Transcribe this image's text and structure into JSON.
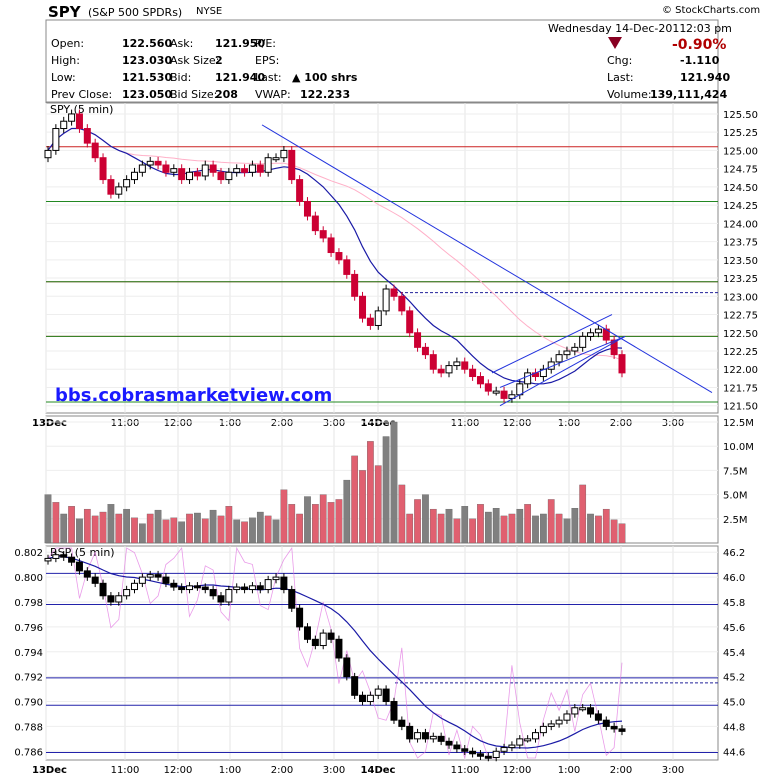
{
  "header": {
    "symbol": "SPY",
    "name": "(S&P 500 SPDRs)",
    "exchange": "NYSE",
    "copyright": "© StockCharts.com",
    "date": "Wednesday  14-Dec-2011",
    "time": "2:03 pm",
    "pct_change": "-0.90%",
    "stats_left": [
      {
        "label": "Open:",
        "value": "122.560"
      },
      {
        "label": "High:",
        "value": "123.030"
      },
      {
        "label": "Low:",
        "value": "121.530"
      },
      {
        "label": "Prev Close:",
        "value": "123.050"
      }
    ],
    "stats_mid": [
      {
        "label": "Ask:",
        "value": "121.950"
      },
      {
        "label": "Ask Size:",
        "value": "2"
      },
      {
        "label": "Bid:",
        "value": "121.940"
      },
      {
        "label": "Bid Size:",
        "value": "208"
      }
    ],
    "stats_mid2": [
      {
        "label": "P/E:",
        "value": ""
      },
      {
        "label": "EPS:",
        "value": ""
      },
      {
        "label": "Last:",
        "value": "100 shrs"
      },
      {
        "label": "VWAP:",
        "value": "122.233"
      }
    ],
    "stats_right": [
      {
        "label": "Chg:",
        "value": "-1.110"
      },
      {
        "label": "Last:",
        "value": "121.940"
      },
      {
        "label": "Volume:",
        "value": "139,111,424"
      }
    ]
  },
  "watermark": "bbs.cobrasmarketview.com",
  "colors": {
    "up": "#000000",
    "down": "#cc0033",
    "ma": "#1a1aa6",
    "ma_light": "#ffb0c8",
    "trend": "#2233dd",
    "hline_red": "#cc2222",
    "hline_green": "#228822",
    "vol_up": "#808080",
    "vol_down": "#e06070",
    "rsp_ma": "#9999cc",
    "rsp_pink": "#e070e0"
  },
  "chart_data": [
    {
      "type": "candlestick",
      "title": "SPY (5 min)",
      "x_labels": [
        "13Dec",
        "11:00",
        "12:00",
        "1:00",
        "2:00",
        "3:00",
        "14Dec",
        "11:00",
        "12:00",
        "1:00",
        "2:00",
        "3:00"
      ],
      "y_ticks": [
        121.5,
        121.75,
        122.0,
        122.25,
        122.5,
        122.75,
        123.0,
        123.25,
        123.5,
        123.75,
        124.0,
        124.25,
        124.5,
        124.75,
        125.0,
        125.25,
        125.5
      ],
      "ylim": [
        121.4,
        125.65
      ],
      "horizontal_levels_red": [
        125.05,
        123.2,
        122.45
      ],
      "horizontal_levels_green": [
        124.3,
        123.2,
        122.45,
        121.55
      ],
      "dashed_level": 123.05,
      "series": [
        {
          "name": "SPY",
          "close": [
            125.0,
            125.3,
            125.4,
            125.5,
            125.3,
            125.1,
            124.9,
            124.6,
            124.4,
            124.5,
            124.6,
            124.7,
            124.8,
            124.85,
            124.8,
            124.7,
            124.75,
            124.6,
            124.7,
            124.65,
            124.8,
            124.7,
            124.6,
            124.7,
            124.75,
            124.7,
            124.8,
            124.7,
            124.9,
            124.9,
            125.0,
            124.6,
            124.3,
            124.1,
            123.9,
            123.8,
            123.6,
            123.5,
            123.3,
            123.0,
            122.7,
            122.6,
            122.8,
            123.1,
            123.0,
            122.8,
            122.5,
            122.3,
            122.2,
            122.0,
            121.95,
            122.05,
            122.1,
            122.0,
            121.9,
            121.8,
            121.7,
            121.7,
            121.6,
            121.65,
            121.8,
            121.95,
            121.9,
            122.0,
            122.1,
            122.2,
            122.25,
            122.3,
            122.45,
            122.5,
            122.55,
            122.4,
            122.2,
            121.95
          ]
        }
      ]
    },
    {
      "type": "bar",
      "title": "Volume",
      "y_ticks": [
        "2.5M",
        "5.0M",
        "7.5M",
        "10.0M",
        "12.5M"
      ],
      "ylim": [
        0,
        12.5
      ],
      "values": [
        5.0,
        4.2,
        3.0,
        3.8,
        2.5,
        3.5,
        2.8,
        3.2,
        4.0,
        3.0,
        3.5,
        2.6,
        2.0,
        3.0,
        3.4,
        2.4,
        2.6,
        2.2,
        3.0,
        3.1,
        2.5,
        3.4,
        2.8,
        3.8,
        2.4,
        2.2,
        2.6,
        3.2,
        2.8,
        2.4,
        5.5,
        4.0,
        3.0,
        4.8,
        4.0,
        5.0,
        4.2,
        4.5,
        6.5,
        9.0,
        7.5,
        10.5,
        8.0,
        11.0,
        12.5,
        6.0,
        3.0,
        4.5,
        5.0,
        3.5,
        3.0,
        3.5,
        2.5,
        3.8,
        2.5,
        4.0,
        3.2,
        3.6,
        2.8,
        3.0,
        3.5,
        4.0,
        2.8,
        3.0,
        4.5,
        3.0,
        2.5,
        3.6,
        6.0,
        3.0,
        2.8,
        3.5,
        2.4,
        2.0
      ],
      "down": [
        false,
        true,
        false,
        true,
        false,
        true,
        true,
        true,
        false,
        true,
        false,
        true,
        false,
        true,
        false,
        true,
        true,
        false,
        true,
        false,
        true,
        false,
        true,
        true,
        false,
        true,
        false,
        false,
        true,
        false,
        true,
        true,
        true,
        false,
        true,
        true,
        true,
        true,
        false,
        true,
        true,
        true,
        true,
        false,
        false,
        true,
        true,
        true,
        false,
        true,
        true,
        false,
        true,
        false,
        true,
        true,
        false,
        false,
        true,
        true,
        false,
        true,
        false,
        false,
        true,
        true,
        false,
        false,
        true,
        false,
        true,
        true,
        true,
        true
      ]
    },
    {
      "type": "line",
      "title": "RSP (5 min)",
      "y_ticks_left": [
        0.786,
        0.788,
        0.79,
        0.792,
        0.794,
        0.796,
        0.798,
        0.8,
        0.802
      ],
      "y_ticks_right": [
        44.6,
        44.8,
        45.0,
        45.2,
        45.4,
        45.6,
        45.8,
        46.0,
        46.2
      ],
      "ylim": [
        0.7853,
        0.8025
      ],
      "dashed_level": 0.7915,
      "horizontal_levels": [
        0.8003,
        0.7978,
        0.7919,
        0.7897,
        0.7859
      ],
      "series": [
        {
          "name": "RSP",
          "values": [
            0.8015,
            0.8018,
            0.8016,
            0.8012,
            0.8005,
            0.8,
            0.7995,
            0.7985,
            0.798,
            0.7985,
            0.799,
            0.7995,
            0.8,
            0.8002,
            0.8,
            0.7995,
            0.7992,
            0.799,
            0.7993,
            0.7992,
            0.799,
            0.7985,
            0.798,
            0.799,
            0.7992,
            0.799,
            0.7993,
            0.799,
            0.7998,
            0.8,
            0.799,
            0.7975,
            0.796,
            0.795,
            0.7945,
            0.7955,
            0.795,
            0.7935,
            0.792,
            0.7905,
            0.79,
            0.7905,
            0.791,
            0.79,
            0.7885,
            0.788,
            0.787,
            0.7875,
            0.787,
            0.7872,
            0.7868,
            0.7865,
            0.7862,
            0.786,
            0.7858,
            0.7856,
            0.7855,
            0.786,
            0.7863,
            0.7865,
            0.787,
            0.787,
            0.7875,
            0.788,
            0.7882,
            0.7885,
            0.789,
            0.7895,
            0.7895,
            0.789,
            0.7885,
            0.788,
            0.7878,
            0.7876
          ]
        }
      ]
    }
  ]
}
